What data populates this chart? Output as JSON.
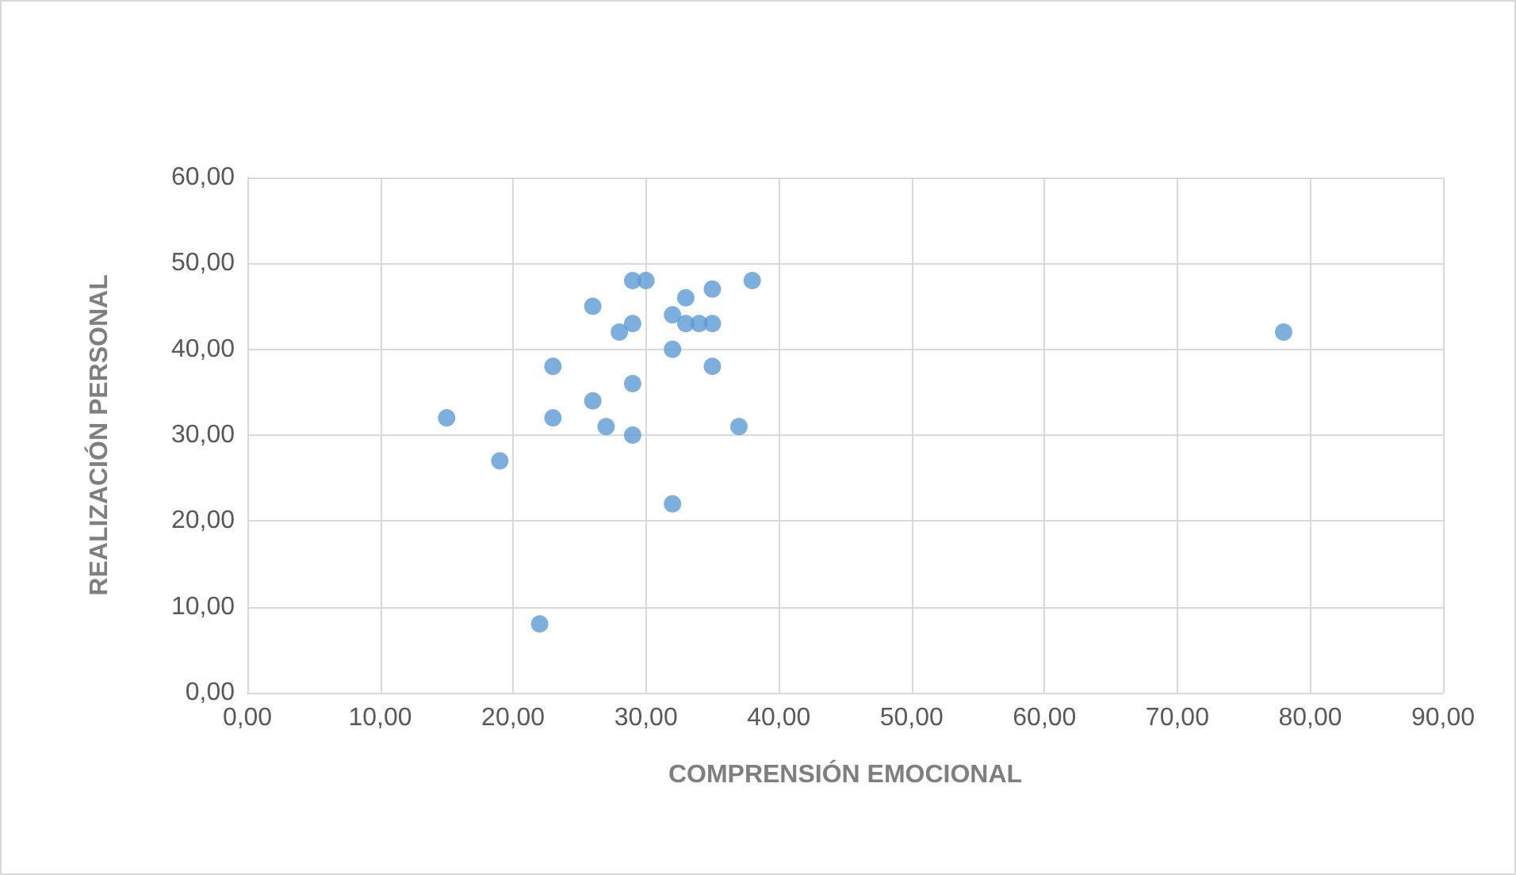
{
  "chart_data": {
    "type": "scatter",
    "xlabel": "COMPRENSIÓN EMOCIONAL",
    "ylabel": "REALIZACIÓN PERSONAL",
    "x": [
      15,
      19,
      22,
      23,
      23,
      26,
      26,
      27,
      28,
      29,
      29,
      29,
      29,
      30,
      32,
      32,
      32,
      33,
      33,
      34,
      35,
      35,
      35,
      37,
      38,
      78
    ],
    "series": [
      {
        "color": "#5b9bd5",
        "values": [
          32,
          27,
          8,
          38,
          32,
          45,
          34,
          31,
          42,
          48,
          43,
          36,
          30,
          48,
          44,
          40,
          22,
          46,
          43,
          43,
          47,
          43,
          38,
          31,
          48,
          42
        ]
      }
    ],
    "xlim": [
      0,
      90
    ],
    "xticks": [
      {
        "value": 0,
        "label": "0,00"
      },
      {
        "value": 10,
        "label": "10,00"
      },
      {
        "value": 20,
        "label": "20,00"
      },
      {
        "value": 30,
        "label": "30,00"
      },
      {
        "value": 40,
        "label": "40,00"
      },
      {
        "value": 50,
        "label": "50,00"
      },
      {
        "value": 60,
        "label": "60,00"
      },
      {
        "value": 70,
        "label": "70,00"
      },
      {
        "value": 80,
        "label": "80,00"
      },
      {
        "value": 90,
        "label": "90,00"
      }
    ],
    "ylim": [
      0,
      60
    ],
    "yticks": [
      {
        "value": 0,
        "label": "0,00"
      },
      {
        "value": 10,
        "label": "10,00"
      },
      {
        "value": 20,
        "label": "20,00"
      },
      {
        "value": 30,
        "label": "30,00"
      },
      {
        "value": 40,
        "label": "40,00"
      },
      {
        "value": 50,
        "label": "50,00"
      },
      {
        "value": 60,
        "label": "60,00"
      }
    ],
    "grid": true,
    "marker": "circle"
  }
}
